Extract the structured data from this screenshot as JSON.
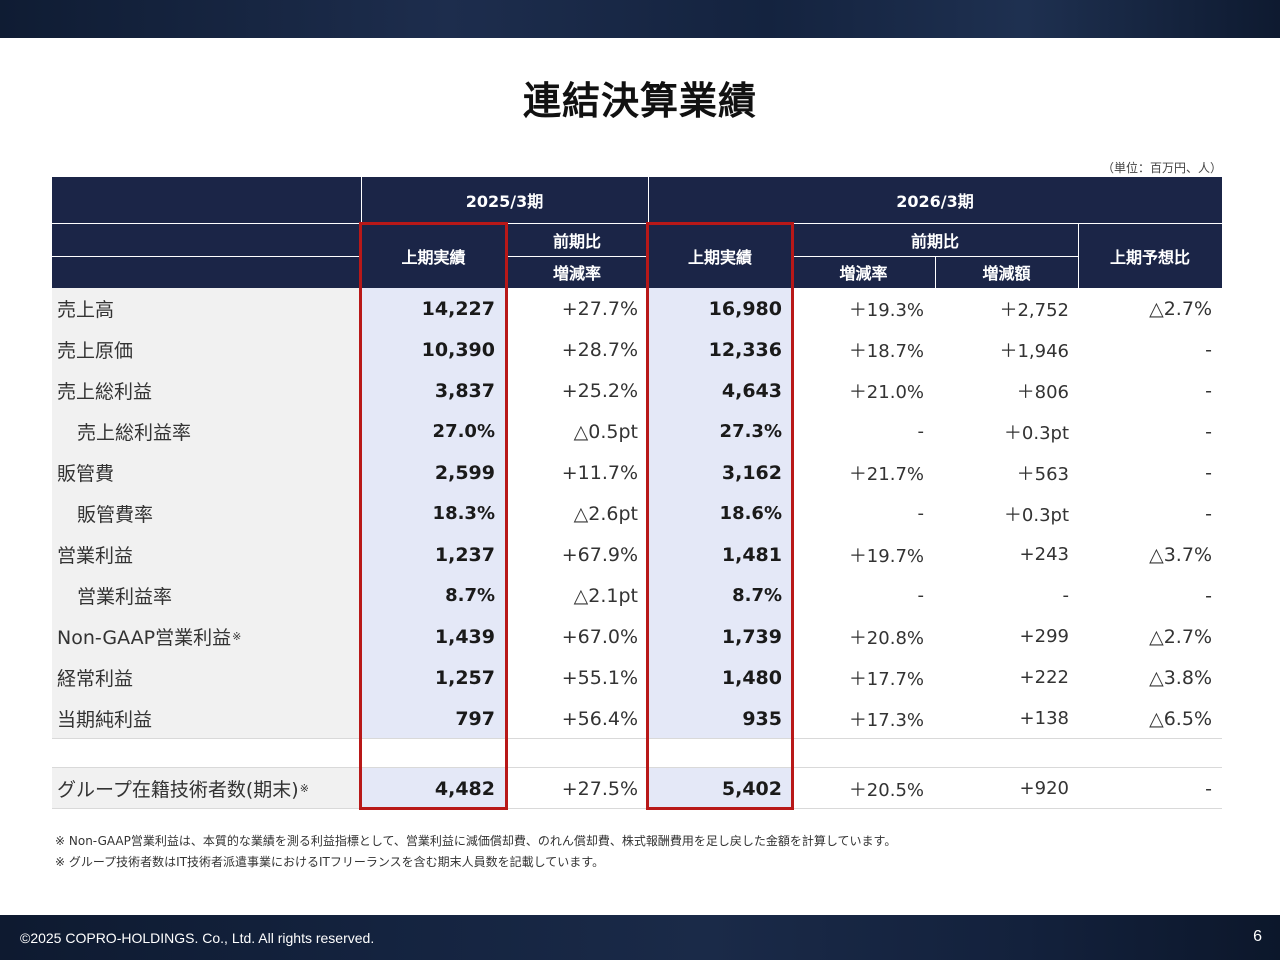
{
  "slide": {
    "title": "連結決算業績",
    "unit": "（単位：百万円、人）",
    "copyright": "©2025 COPRO-HOLDINGS. Co., Ltd. All rights reserved.",
    "page_number": "6"
  },
  "table": {
    "periods": [
      "2025/3期",
      "2026/3期"
    ],
    "headers": {
      "actual_2025": "上期実績",
      "yoy_2025": "前期比",
      "rate_2025": "増減率",
      "actual_2026": "上期実績",
      "yoy_2026": "前期比",
      "rate_2026": "増減率",
      "amount_2026": "増減額",
      "forecast_2026": "上期予想比"
    },
    "rows": [
      {
        "label": "売上高",
        "a25": "14,227",
        "r25": "+27.7%",
        "a26": "16,980",
        "r26": "＋19.3%",
        "d26": "＋2,752",
        "f26": "△2.7%"
      },
      {
        "label": "売上原価",
        "a25": "10,390",
        "r25": "+28.7%",
        "a26": "12,336",
        "r26": "＋18.7%",
        "d26": "＋1,946",
        "f26": "-"
      },
      {
        "label": "売上総利益",
        "a25": "3,837",
        "r25": "+25.2%",
        "a26": "4,643",
        "r26": "＋21.0%",
        "d26": "＋806",
        "f26": "-"
      },
      {
        "label": "売上総利益率",
        "a25": "27.0%",
        "r25": "△0.5pt",
        "a26": "27.3%",
        "r26": "-",
        "d26": "＋0.3pt",
        "f26": "-"
      },
      {
        "label": "販管費",
        "a25": "2,599",
        "r25": "+11.7%",
        "a26": "3,162",
        "r26": "＋21.7%",
        "d26": "＋563",
        "f26": "-"
      },
      {
        "label": "販管費率",
        "a25": "18.3%",
        "r25": "△2.6pt",
        "a26": "18.6%",
        "r26": "-",
        "d26": "＋0.3pt",
        "f26": "-"
      },
      {
        "label": "営業利益",
        "a25": "1,237",
        "r25": "+67.9%",
        "a26": "1,481",
        "r26": "＋19.7%",
        "d26": "+243",
        "f26": "△3.7%"
      },
      {
        "label": "営業利益率",
        "a25": "8.7%",
        "r25": "△2.1pt",
        "a26": "8.7%",
        "r26": "-",
        "d26": "-",
        "f26": "-"
      },
      {
        "label": "Non-GAAP営業利益",
        "a25": "1,439",
        "r25": "+67.0%",
        "a26": "1,739",
        "r26": "＋20.8%",
        "d26": "+299",
        "f26": "△2.7%"
      },
      {
        "label": "経常利益",
        "a25": "1,257",
        "r25": "+55.1%",
        "a26": "1,480",
        "r26": "＋17.7%",
        "d26": "+222",
        "f26": "△3.8%"
      },
      {
        "label": "当期純利益",
        "a25": "797",
        "r25": "+56.4%",
        "a26": "935",
        "r26": "＋17.3%",
        "d26": "+138",
        "f26": "△6.5%"
      }
    ],
    "engineers_row": {
      "label": "グループ在籍技術者数(期末)",
      "a25": "4,482",
      "r25": "+27.5%",
      "a26": "5,402",
      "r26": "＋20.5%",
      "d26": "+920",
      "f26": "-"
    },
    "note_mark": "※"
  },
  "notes": [
    "※ Non-GAAP営業利益は、本質的な業績を測る利益指標として、営業利益に減価償却費、のれん償却費、株式報酬費用を足し戻した金額を計算しています。",
    "※ グループ技術者数はIT技術者派遣事業におけるITフリーランスを含む期末人員数を記載しています。"
  ],
  "colors": {
    "header_bg": "#1b2547",
    "highlight_bg": "#e4e8f7",
    "label_bg": "#f1f1f1",
    "highlight_border": "#b81818"
  }
}
